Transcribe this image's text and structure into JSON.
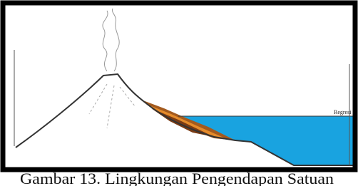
{
  "diagram": {
    "label": "Regresi",
    "caption": "Gambar 13. Lingkungan Pengendapan Satuan"
  }
}
